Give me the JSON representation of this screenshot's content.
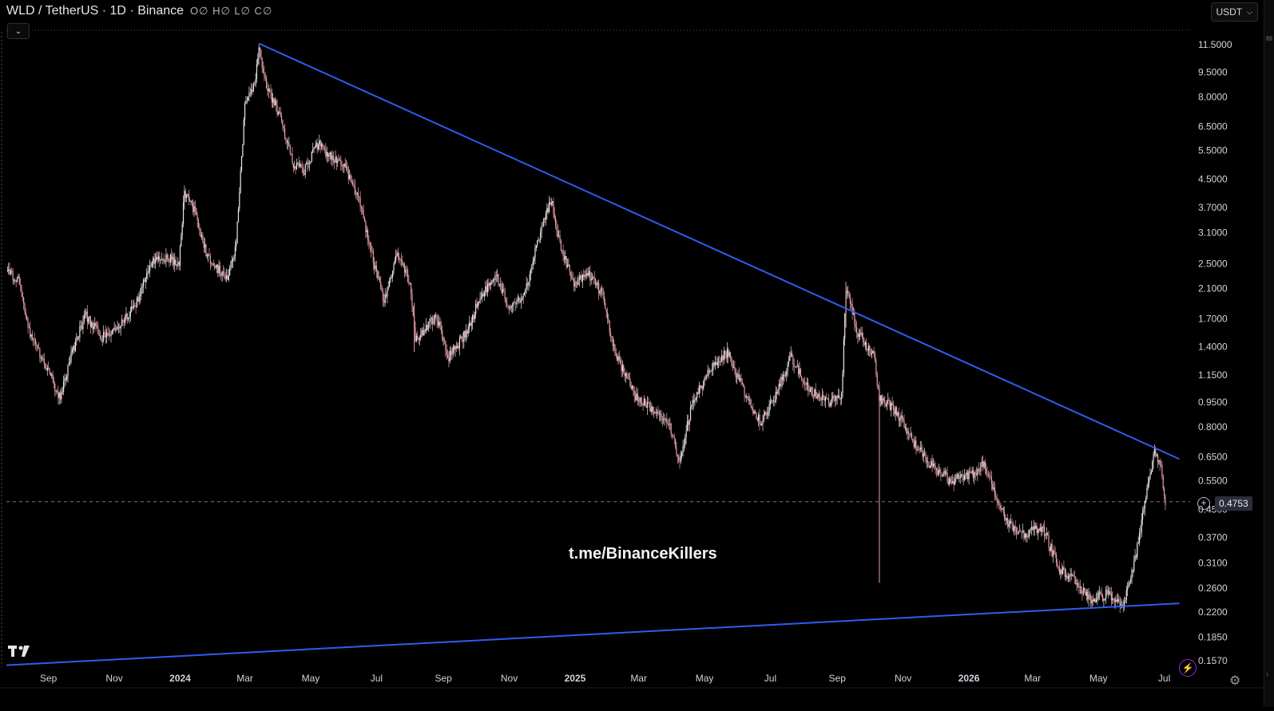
{
  "header": {
    "symbol": "WLD / TetherUS · 1D · Binance",
    "ohlc": "O∅ H∅ L∅ C∅"
  },
  "currency": "USDT",
  "watermark": "t.me/BinanceKillers",
  "last_price": "0.4753",
  "colors": {
    "background": "#000000",
    "candle_up": "#e8e8e8",
    "candle_down": "#e8a0a8",
    "trendline": "#2f5cf0",
    "axis_text": "#d1d4dc",
    "gridline": "#4a4a4a"
  },
  "chart_data": {
    "type": "candlestick",
    "title": "",
    "y_scale": "log",
    "y_ticks": [
      "11.5000",
      "9.5000",
      "8.0000",
      "6.5000",
      "5.5000",
      "4.5000",
      "3.7000",
      "3.1000",
      "2.5000",
      "2.1000",
      "1.7000",
      "1.4000",
      "1.1500",
      "0.9500",
      "0.8000",
      "0.6500",
      "0.5500",
      "0.4500",
      "0.3700",
      "0.3100",
      "0.2600",
      "0.2200",
      "0.1850",
      "0.1570"
    ],
    "ylim": [
      0.15,
      13.0
    ],
    "x_ticks": [
      "Sep",
      "Nov",
      "2024",
      "Mar",
      "May",
      "Jul",
      "Sep",
      "Nov",
      "2025",
      "Mar",
      "May",
      "Jul",
      "Sep",
      "Nov",
      "2026",
      "Mar",
      "May",
      "Jul"
    ],
    "x_tick_dates": [
      "2023-09-01",
      "2023-11-01",
      "2024-01-01",
      "2024-03-01",
      "2024-05-01",
      "2024-07-01",
      "2024-09-01",
      "2024-11-01",
      "2025-01-01",
      "2025-03-01",
      "2025-05-01",
      "2025-07-01",
      "2025-09-01",
      "2025-11-01",
      "2026-01-01",
      "2026-03-01",
      "2026-05-01",
      "2026-07-01"
    ],
    "xlim": [
      "2023-07-24",
      "2026-07-25"
    ],
    "price_path": [
      [
        "2023-07-25",
        2.4
      ],
      [
        "2023-08-05",
        2.2
      ],
      [
        "2023-08-15",
        1.55
      ],
      [
        "2023-08-28",
        1.25
      ],
      [
        "2023-09-12",
        0.98
      ],
      [
        "2023-09-20",
        1.25
      ],
      [
        "2023-10-05",
        1.75
      ],
      [
        "2023-10-20",
        1.5
      ],
      [
        "2023-11-05",
        1.6
      ],
      [
        "2023-11-20",
        1.85
      ],
      [
        "2023-12-05",
        2.5
      ],
      [
        "2023-12-20",
        2.6
      ],
      [
        "2023-12-31",
        2.5
      ],
      [
        "2024-01-05",
        4.1
      ],
      [
        "2024-01-15",
        3.6
      ],
      [
        "2024-01-25",
        2.7
      ],
      [
        "2024-02-05",
        2.4
      ],
      [
        "2024-02-15",
        2.3
      ],
      [
        "2024-02-22",
        2.9
      ],
      [
        "2024-03-01",
        7.5
      ],
      [
        "2024-03-10",
        8.8
      ],
      [
        "2024-03-14",
        11.2
      ],
      [
        "2024-03-22",
        8.5
      ],
      [
        "2024-04-01",
        7.2
      ],
      [
        "2024-04-15",
        5.0
      ],
      [
        "2024-04-25",
        4.8
      ],
      [
        "2024-05-08",
        5.8
      ],
      [
        "2024-05-20",
        5.2
      ],
      [
        "2024-06-01",
        5.0
      ],
      [
        "2024-06-15",
        3.9
      ],
      [
        "2024-06-25",
        2.8
      ],
      [
        "2024-07-08",
        1.9
      ],
      [
        "2024-07-20",
        2.7
      ],
      [
        "2024-08-01",
        2.2
      ],
      [
        "2024-08-06",
        1.45
      ],
      [
        "2024-08-25",
        1.75
      ],
      [
        "2024-09-06",
        1.3
      ],
      [
        "2024-09-25",
        1.6
      ],
      [
        "2024-10-05",
        2.0
      ],
      [
        "2024-10-20",
        2.3
      ],
      [
        "2024-11-01",
        1.8
      ],
      [
        "2024-11-15",
        2.0
      ],
      [
        "2024-11-25",
        2.7
      ],
      [
        "2024-12-05",
        3.5
      ],
      [
        "2024-12-10",
        3.9
      ],
      [
        "2024-12-20",
        2.7
      ],
      [
        "2024-12-31",
        2.2
      ],
      [
        "2025-01-15",
        2.3
      ],
      [
        "2025-01-27",
        2.0
      ],
      [
        "2025-02-05",
        1.4
      ],
      [
        "2025-02-25",
        1.0
      ],
      [
        "2025-03-15",
        0.9
      ],
      [
        "2025-04-01",
        0.78
      ],
      [
        "2025-04-07",
        0.62
      ],
      [
        "2025-04-20",
        0.95
      ],
      [
        "2025-05-10",
        1.25
      ],
      [
        "2025-05-22",
        1.35
      ],
      [
        "2025-06-05",
        1.05
      ],
      [
        "2025-06-22",
        0.82
      ],
      [
        "2025-07-05",
        0.98
      ],
      [
        "2025-07-20",
        1.3
      ],
      [
        "2025-08-05",
        1.05
      ],
      [
        "2025-08-25",
        0.95
      ],
      [
        "2025-09-05",
        1.0
      ],
      [
        "2025-09-09",
        2.1
      ],
      [
        "2025-09-20",
        1.55
      ],
      [
        "2025-10-05",
        1.3
      ],
      [
        "2025-10-10",
        0.98
      ],
      [
        "2025-10-25",
        0.9
      ],
      [
        "2025-11-10",
        0.72
      ],
      [
        "2025-11-25",
        0.62
      ],
      [
        "2025-12-15",
        0.55
      ],
      [
        "2026-01-05",
        0.58
      ],
      [
        "2026-01-15",
        0.62
      ],
      [
        "2026-01-25",
        0.5
      ],
      [
        "2026-02-05",
        0.41
      ],
      [
        "2026-02-20",
        0.38
      ],
      [
        "2026-03-10",
        0.4
      ],
      [
        "2026-03-25",
        0.3
      ],
      [
        "2026-04-10",
        0.27
      ],
      [
        "2026-04-25",
        0.24
      ],
      [
        "2026-05-10",
        0.25
      ],
      [
        "2026-05-24",
        0.23
      ],
      [
        "2026-06-05",
        0.33
      ],
      [
        "2026-06-15",
        0.52
      ],
      [
        "2026-06-22",
        0.68
      ],
      [
        "2026-06-28",
        0.6
      ],
      [
        "2026-07-02",
        0.475
      ]
    ],
    "trendlines": [
      {
        "from": [
          "2024-03-14",
          11.6
        ],
        "to": [
          "2026-07-15",
          0.64
        ]
      },
      {
        "from": [
          "2023-07-24",
          0.152
        ],
        "to": [
          "2026-07-15",
          0.234
        ]
      }
    ],
    "current_price": 0.4753,
    "grid": false,
    "legend": "none"
  }
}
